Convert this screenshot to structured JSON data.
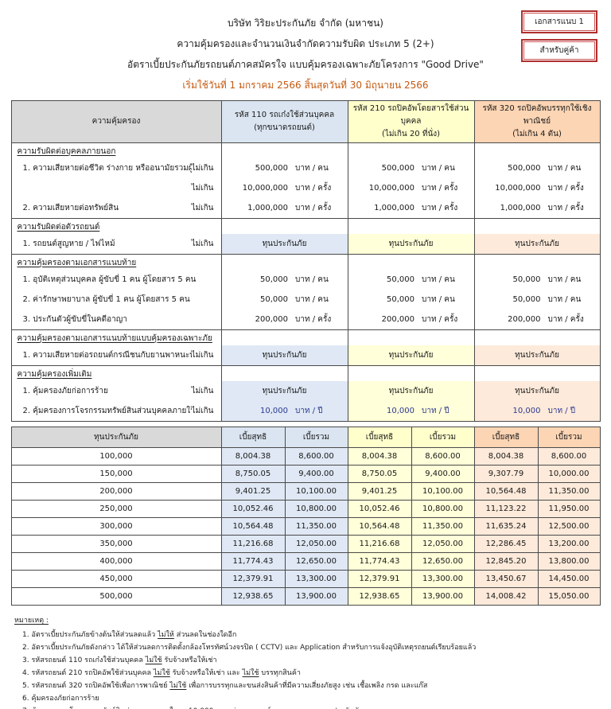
{
  "header": {
    "badges": [
      "เอกสารแนบ 1",
      "สำหรับคู่ค้า"
    ],
    "company": "บริษัท วิริยะประกันภัย จำกัด (มหาชน)",
    "coverage_title": "ความคุ้มครองและจำนวนเงินจำกัดความรับผิด ประเภท  5 (2+)",
    "rate_title": "อัตราเบี้ยประกันภัยรถยนต์ภาคสมัครใจ แบบคุ้มครองเฉพาะภัยโครงการ \"Good Drive\"",
    "period": "เริ่มใช้วันที่ 1 มกราคม 2566 สิ้นสุดวันที่ 30 มิถุนายน 2566"
  },
  "colors": {
    "header_gray": "#d9d9d9",
    "col_110": "#dbe5f1",
    "col_210": "#ffffcc",
    "col_320": "#fcd5b4",
    "body_110": "#dfe8f4",
    "body_210": "#ffffd9",
    "body_320": "#fdeada",
    "badge_border_red": "#b03030",
    "period_orange": "#c55a11",
    "value_blue": "#2b3990",
    "highlight_yellow": "#ffff00"
  },
  "coverage_table": {
    "corner_header": "ความคุ้มครอง",
    "vehicle_columns": [
      {
        "line1": "รหัส 110 รถเก๋งใช้ส่วนบุคคล",
        "line2": "(ทุกขนาดรถยนต์)"
      },
      {
        "line1": "รหัส 210 รถปิคอัพโดยสารใช้ส่วนบุคคล",
        "line2": "(ไม่เกิน 20 ที่นั่ง)"
      },
      {
        "line1": "รหัส 320 รถปิคอัพบรรทุกใช้เชิงพาณิชย์",
        "line2": "(ไม่เกิน 4 ตัน)"
      }
    ],
    "sections": [
      {
        "title": "ความรับผิดต่อบุคคลภายนอก",
        "rows": [
          {
            "label": "1. ความเสียหายต่อชีวิต ร่างกาย หรืออนามัยรวมผู้โดยสาร",
            "limit": "ไม่เกิน",
            "amount": "500,000",
            "unit": "บาท / คน"
          },
          {
            "label": "",
            "limit": "ไม่เกิน",
            "amount": "10,000,000",
            "unit": "บาท / ครั้ง"
          },
          {
            "label": "2. ความเสียหายต่อทรัพย์สิน",
            "limit": "ไม่เกิน",
            "amount": "1,000,000",
            "unit": "บาท / ครั้ง"
          }
        ]
      },
      {
        "title": "ความรับผิดต่อตัวรถยนต์",
        "rows": [
          {
            "label": "1. รถยนต์สูญหาย / ไฟไหม้",
            "limit": "ไม่เกิน",
            "text": "ทุนประกันภัย",
            "tinted": true
          }
        ]
      },
      {
        "title": "ความคุ้มครองตามเอกสารแนบท้าย",
        "rows": [
          {
            "label": "1. อุบัติเหตุส่วนบุคคล  ผู้ขับขี่ 1 คน ผู้โดยสาร 5 คน",
            "limit": "",
            "amount": "50,000",
            "unit": "บาท / คน"
          },
          {
            "label": "2. ค่ารักษาพยาบาล    ผู้ขับขี่ 1 คน ผู้โดยสาร 5 คน",
            "limit": "",
            "amount": "50,000",
            "unit": "บาท / คน"
          },
          {
            "label": "3. ประกันตัวผู้ขับขี่ในคดีอาญา",
            "limit": "",
            "amount": "200,000",
            "unit": "บาท / ครั้ง"
          }
        ]
      },
      {
        "title": "ความคุ้มครองตามเอกสารแนบท้ายแบบคุ้มครองเฉพาะภัย",
        "rows": [
          {
            "label": "1. ความเสียหายต่อรถยนต์กรณีชนกับยานพาหนะทางบก",
            "limit": "ไม่เกิน",
            "text": "ทุนประกันภัย",
            "tinted": true
          }
        ]
      },
      {
        "title": "ความคุ้มครองเพิ่มเติม",
        "rows": [
          {
            "label": "1. คุ้มครองภัยก่อการร้าย",
            "limit": "ไม่เกิน",
            "text": "ทุนประกันภัย",
            "tinted": true
          },
          {
            "label": "2. คุ้มครองการโจรกรรมทรัพย์สินส่วนบุคคลภายในรถ",
            "limit": "ไม่เกิน",
            "amount": "10,000",
            "unit": "บาท / ปี",
            "tinted": true,
            "blue": true
          }
        ]
      }
    ]
  },
  "premium_table": {
    "corner_header": "ทุนประกันภัย",
    "sub_headers": [
      "เบี้ยสุทธิ",
      "เบี้ยรวม"
    ],
    "rows": [
      {
        "sum_insured": "100,000",
        "values": [
          "8,004.38",
          "8,600.00",
          "8,004.38",
          "8,600.00",
          "8,004.38",
          "8,600.00"
        ]
      },
      {
        "sum_insured": "150,000",
        "values": [
          "8,750.05",
          "9,400.00",
          "8,750.05",
          "9,400.00",
          "9,307.79",
          "10,000.00"
        ]
      },
      {
        "sum_insured": "200,000",
        "values": [
          "9,401.25",
          "10,100.00",
          "9,401.25",
          "10,100.00",
          "10,564.48",
          "11,350.00"
        ]
      },
      {
        "sum_insured": "250,000",
        "values": [
          "10,052.46",
          "10,800.00",
          "10,052.46",
          "10,800.00",
          "11,123.22",
          "11,950.00"
        ]
      },
      {
        "sum_insured": "300,000",
        "values": [
          "10,564.48",
          "11,350.00",
          "10,564.48",
          "11,350.00",
          "11,635.24",
          "12,500.00"
        ]
      },
      {
        "sum_insured": "350,000",
        "values": [
          "11,216.68",
          "12,050.00",
          "11,216.68",
          "12,050.00",
          "12,286.45",
          "13,200.00"
        ]
      },
      {
        "sum_insured": "400,000",
        "values": [
          "11,774.43",
          "12,650.00",
          "11,774.43",
          "12,650.00",
          "12,845.20",
          "13,800.00"
        ]
      },
      {
        "sum_insured": "450,000",
        "values": [
          "12,379.91",
          "13,300.00",
          "12,379.91",
          "13,300.00",
          "13,450.67",
          "14,450.00"
        ]
      },
      {
        "sum_insured": "500,000",
        "values": [
          "12,938.65",
          "13,900.00",
          "12,938.65",
          "13,900.00",
          "14,008.42",
          "15,050.00"
        ]
      }
    ]
  },
  "footnotes": {
    "title": "หมายเหตุ :",
    "items": [
      {
        "segments": [
          {
            "text": "1. อัตราเบี้ยประกันภัยข้างต้นให้ส่วนลดแล้ว "
          },
          {
            "text": "ไม่ให้",
            "underline": true
          },
          {
            "text": " ส่วนลดในช่องใดอีก"
          }
        ]
      },
      {
        "segments": [
          {
            "text": "2. อัตราเบี้ยประกันภัยดังกล่าว ได้ให้ส่วนลดการติดตั้งกล้องโทรทัศน์วงจรปิด ( CCTV) และ Application สำหรับการแจ้งอุบัติเหตุรถยนต์เรียบร้อยแล้ว"
          }
        ]
      },
      {
        "segments": [
          {
            "text": "3. รหัสรถยนต์ 110 รถเก๋งใช้ส่วนบุคคล "
          },
          {
            "text": "ไม่ใช้",
            "underline": true
          },
          {
            "text": " รับจ้างหรือให้เช่า"
          }
        ]
      },
      {
        "segments": [
          {
            "text": "4. รหัสรถยนต์ 210 รถปิคอัพใช้ส่วนบุคคล "
          },
          {
            "text": "ไม่ใช้",
            "underline": true
          },
          {
            "text": " รับจ้างหรือให้เช่า และ "
          },
          {
            "text": "ไม่ใช้",
            "underline": true
          },
          {
            "text": " บรรทุกสินค้า"
          }
        ]
      },
      {
        "segments": [
          {
            "text": "5. รหัสรถยนต์ 320 รถปิคอัพใช้เพื่อการพาณิชย์ "
          },
          {
            "text": "ไม่ใช้",
            "underline": true
          },
          {
            "text": " เพื่อการบรรทุกและขนส่งสินค้าที่มีความเสี่ยงภัยสูง เช่น เชื้อเพลิง กรด และแก๊ส"
          }
        ]
      },
      {
        "segments": [
          {
            "text": "6. คุ้มครองภัยก่อการร้าย"
          }
        ]
      },
      {
        "segments": [
          {
            "text": "7. คุ้มครองการโจรกรรมทรัพย์สินส่วนบุคคลภายในรถ 10,000 บาท ต่อเหตุการณ์และตลอดระยะเวลาประกันภัย"
          }
        ]
      },
      {
        "segments": [
          {
            "text": "8. เงินทดแทน 30% ของเบี้ยประกันภัยสุทธิ กรณีไม่มีการเรียกร้องค่าสินไหมทดแทนจากบริษัท"
          }
        ],
        "highlight": true
      }
    ]
  }
}
